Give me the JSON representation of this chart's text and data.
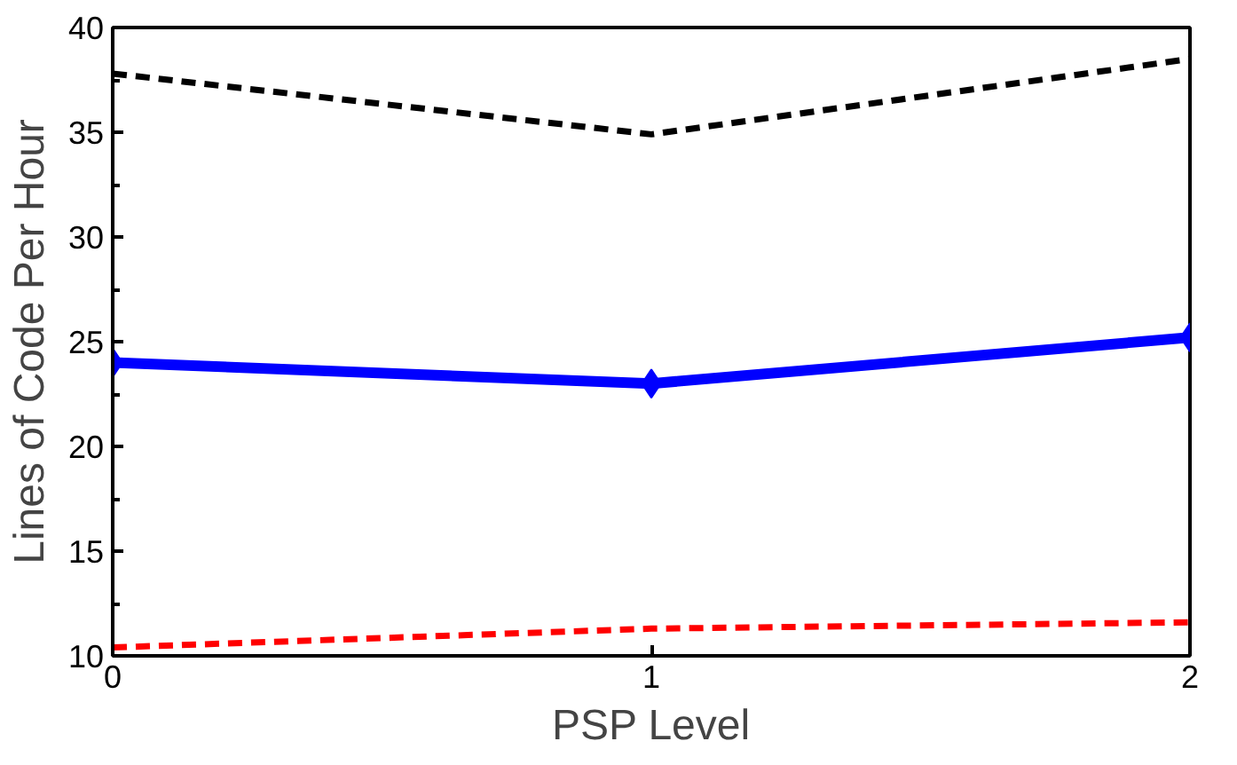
{
  "chart_data": {
    "type": "line",
    "xlabel": "PSP Level",
    "ylabel": "Lines of Code Per Hour",
    "x": [
      0,
      1,
      2
    ],
    "xlim": [
      0,
      2
    ],
    "xticks": [
      0,
      1,
      2
    ],
    "ylim": [
      10,
      40
    ],
    "yticks": [
      10,
      15,
      20,
      25,
      30,
      35,
      40
    ],
    "grid": false,
    "series": [
      {
        "color": "#000000",
        "values": [
          37.8,
          34.9,
          38.5
        ],
        "line_style": "dashed",
        "marker": "none"
      },
      {
        "color": "#0000ff",
        "values": [
          24.0,
          23.0,
          25.2
        ],
        "line_style": "solid",
        "marker": "diamond"
      },
      {
        "color": "#ff0000",
        "values": [
          10.4,
          11.3,
          11.6
        ],
        "line_style": "dashed",
        "marker": "none"
      }
    ]
  }
}
